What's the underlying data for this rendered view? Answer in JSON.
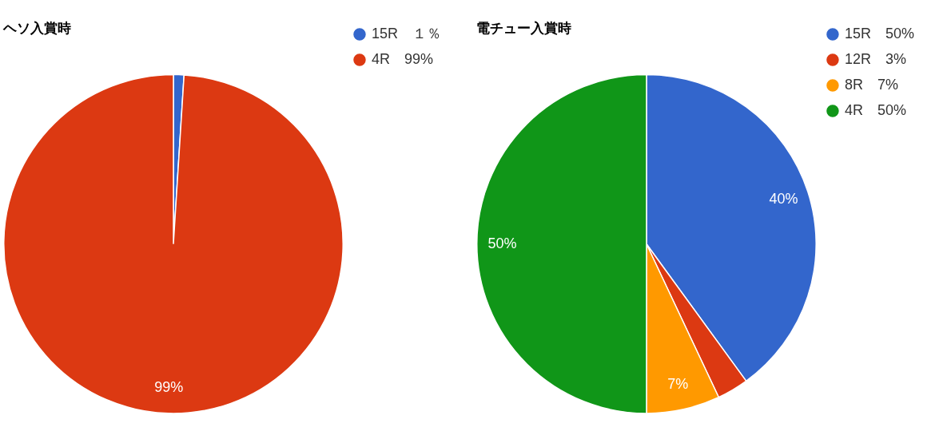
{
  "chart_data": [
    {
      "type": "pie",
      "title": "ヘソ入賞時",
      "categories": [
        "15R　１％",
        "4R　99%"
      ],
      "values": [
        1,
        99
      ],
      "colors": [
        "#3366cc",
        "#dc3912"
      ],
      "value_labels": [
        null,
        "99%"
      ],
      "legend": "top right"
    },
    {
      "type": "pie",
      "title": "電チュー入賞時",
      "categories": [
        "15R　50%",
        "12R　3%",
        "8R　7%",
        "4R　50%"
      ],
      "values": [
        40,
        3,
        7,
        50
      ],
      "colors": [
        "#3366cc",
        "#dc3912",
        "#ff9900",
        "#109618"
      ],
      "value_labels": [
        "40%",
        null,
        "7%",
        "50%"
      ],
      "legend": "top right"
    }
  ]
}
